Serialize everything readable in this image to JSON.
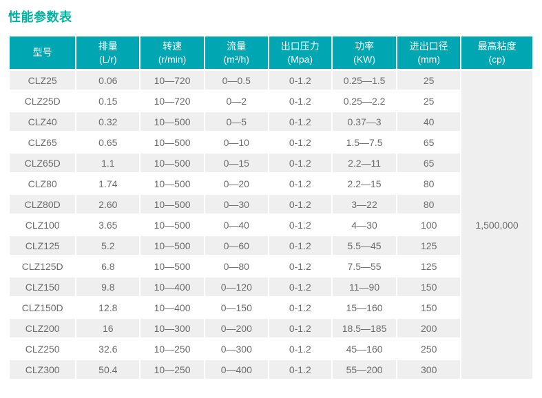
{
  "title": "性能参数表",
  "colors": {
    "title": "#00b2a0",
    "header_bg": "#00a6b2",
    "header_text": "#ffffff",
    "row_alt_bg": "#efefef",
    "body_text": "#6b6b6b"
  },
  "table": {
    "headers": [
      {
        "label": "型号",
        "unit": ""
      },
      {
        "label": "排量",
        "unit": "(L/r)"
      },
      {
        "label": "转速",
        "unit": "(r/min)"
      },
      {
        "label": "流量",
        "unit": "(m³/h)"
      },
      {
        "label": "出口压力",
        "unit": "(Mpa)"
      },
      {
        "label": "功率",
        "unit": "(KW)"
      },
      {
        "label": "进出口径",
        "unit": "(mm)"
      },
      {
        "label": "最高粘度",
        "unit": "(cp)"
      }
    ],
    "rows": [
      [
        "CLZ25",
        "0.06",
        "10—720",
        "0—0.5",
        "0-1.2",
        "0.25—1.5",
        "25"
      ],
      [
        "CLZ25D",
        "0.15",
        "10—720",
        "0—2",
        "0-1.2",
        "0.25—2.2",
        "25"
      ],
      [
        "CLZ40",
        "0.32",
        "10—500",
        "0—5",
        "0-1.2",
        "0.37—3",
        "40"
      ],
      [
        "CLZ65",
        "0.65",
        "10—500",
        "0—10",
        "0-1.2",
        "1.5—7.5",
        "65"
      ],
      [
        "CLZ65D",
        "1.1",
        "10—500",
        "0—15",
        "0-1.2",
        "2.2—11",
        "65"
      ],
      [
        "CLZ80",
        "1.74",
        "10—500",
        "0—20",
        "0-1.2",
        "2.2—15",
        "80"
      ],
      [
        "CLZ80D",
        "2.60",
        "10—500",
        "0—30",
        "0-1.2",
        "3—22",
        "80"
      ],
      [
        "CLZ100",
        "3.65",
        "10—500",
        "0—40",
        "0-1.2",
        "4—30",
        "100"
      ],
      [
        "CLZ125",
        "5.2",
        "10—500",
        "0—60",
        "0-1.2",
        "5.5—45",
        "125"
      ],
      [
        "CLZ125D",
        "6.8",
        "10—500",
        "0—80",
        "0-1.2",
        "7.5—55",
        "125"
      ],
      [
        "CLZ150",
        "9.8",
        "10—400",
        "0—120",
        "0-1.2",
        "11—90",
        "150"
      ],
      [
        "CLZ150D",
        "12.8",
        "10—400",
        "0—150",
        "0-1.2",
        "15—160",
        "150"
      ],
      [
        "CLZ200",
        "16",
        "10—300",
        "0—200",
        "0-1.2",
        "18.5—185",
        "200"
      ],
      [
        "CLZ250",
        "32.6",
        "10—250",
        "0—300",
        "0-1.2",
        "45—160",
        "250"
      ],
      [
        "CLZ300",
        "50.4",
        "10—250",
        "0—400",
        "0-1.2",
        "55—200",
        "300"
      ]
    ],
    "merged_max_viscosity": "1,500,000"
  }
}
